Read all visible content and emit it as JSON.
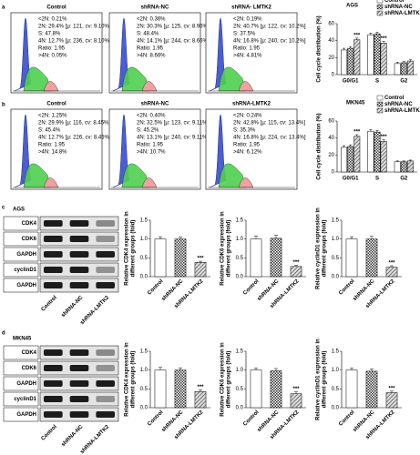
{
  "panel_labels": [
    "a",
    "b",
    "c",
    "d"
  ],
  "flow": [
    {
      "title": "Control",
      "stats": [
        "<2N: 0.21%",
        "2N: 29.4% [μ: 121, cv: 9.10%]",
        "S: 47.8%",
        "4N: 12.7% [μ: 236, cv: 8.10%]",
        "Ratio: 1.95",
        ">4N: 0.05%"
      ]
    },
    {
      "title": "shRNA-NC",
      "stats": [
        "<2N: 0.36%",
        "2N: 30.3% [μ: 125, cv: 8.96%]",
        "S: 48.4%",
        "4N: 14.1% [μ: 244, cv: 8.66%]",
        "Ratio: 1.95",
        ">4N: 8.66%"
      ]
    },
    {
      "title": "shRNA- LMTK2",
      "stats": [
        "<2N: 0.19%",
        "2N: 40.7% [μ: 122, cv: 10.2%]",
        "S: 37.5%",
        "4N: 16.8% [μ: 240, cv: 10.2%]",
        "Ratio: 1.95",
        ">4N: 4.81%"
      ]
    },
    {
      "title": "Control",
      "stats": [
        "<2N: 1.25%",
        "2N: 29.9% [μ: 116, cv: 8.45%]",
        "S: 45.4%",
        "4N: 12.7% [μ: 226, cv: 8.45%]",
        "Ratio: 1.95",
        ">4N: 14.8%"
      ]
    },
    {
      "title": "shRNA-NC",
      "stats": [
        "<2N: 0.40%",
        "2N: 32.5% [μ: 123, cv: 9.11%]",
        "S: 45.2%",
        "4N: 13.1% [μ: 240, cv: 9.11%]",
        "Ratio: 1.95",
        ">4N: 10.7%"
      ]
    },
    {
      "title": "shRNA-LMTK2",
      "stats": [
        "<2N: 0.24%",
        "2N: 42.8% [μ: 115, cv: 13.4%]",
        "S: 35.3%",
        "4N: 16.8% [μ: 224, cv: 13.4%]",
        "Ratio: 1.95",
        ">4N: 6.12%"
      ]
    }
  ],
  "blots": [
    {
      "cell_line": "AGS",
      "rows": [
        "CDK4",
        "CDK6",
        "GAPDH",
        "cyclinD1",
        "GAPDH"
      ],
      "lanes": [
        "Control",
        "shRNA-NC",
        "shRNA-LMTK2"
      ]
    },
    {
      "cell_line": "MKN45",
      "rows": [
        "CDK4",
        "CDK6",
        "GAPDH",
        "cyclinD1",
        "GAPDH"
      ],
      "lanes": [
        "Control",
        "shRNA-NC",
        "shRNA-LMTK2"
      ]
    }
  ],
  "chart_data": [
    {
      "type": "grouped_bar",
      "title": "AGS",
      "ylabel": "Cell cycle distribution (%)",
      "categories": [
        "G0/G1",
        "S",
        "G2"
      ],
      "series": [
        {
          "name": "Control",
          "color": "#ffffff",
          "pattern": "plain",
          "values": [
            29,
            47,
            13
          ],
          "errors": [
            2,
            2,
            1.5
          ]
        },
        {
          "name": "shRNA-NC",
          "color": "#ffffff",
          "pattern": "checker",
          "values": [
            31,
            48,
            14
          ],
          "errors": [
            2,
            2,
            1.5
          ]
        },
        {
          "name": "shRNA-LMTK2",
          "color": "#ffffff",
          "pattern": "hatch",
          "values": [
            41,
            37,
            16
          ],
          "errors": [
            2,
            2,
            1.5
          ],
          "marks": [
            "***",
            "***",
            null
          ]
        }
      ],
      "ylim": [
        0,
        60
      ],
      "yticks": [
        0,
        20,
        40,
        60
      ]
    },
    {
      "type": "grouped_bar",
      "title": "MKN45",
      "ylabel": "Cell cycle distribution (%)",
      "categories": [
        "G0/G1",
        "S",
        "G2"
      ],
      "series": [
        {
          "name": "Control",
          "color": "#ffffff",
          "pattern": "plain",
          "values": [
            29,
            48,
            12
          ],
          "errors": [
            2,
            2,
            1
          ]
        },
        {
          "name": "shRNA-NC",
          "color": "#ffffff",
          "pattern": "checker",
          "values": [
            30,
            47,
            12
          ],
          "errors": [
            2,
            2,
            1
          ]
        },
        {
          "name": "shRNA-LMTK2",
          "color": "#ffffff",
          "pattern": "hatch",
          "values": [
            42,
            36,
            13
          ],
          "errors": [
            2,
            2,
            1
          ],
          "marks": [
            "***",
            "***",
            null
          ]
        }
      ],
      "ylim": [
        0,
        60
      ],
      "yticks": [
        0,
        20,
        40,
        60
      ]
    },
    {
      "type": "bar",
      "ylabel": [
        "Relative CDK4 expression in",
        "different groups (fold)"
      ],
      "categories": [
        "Control",
        "shRNA-NC",
        "shRNA-LMTK2"
      ],
      "values": [
        1.0,
        1.0,
        0.38
      ],
      "errors": [
        0.06,
        0.06,
        0.03
      ],
      "patterns": [
        "plain",
        "checker",
        "hatch"
      ],
      "marks": [
        null,
        null,
        "***"
      ],
      "ylim": [
        0,
        1.5
      ],
      "yticks": [
        {
          "value": 0,
          "label": "0.0"
        },
        {
          "value": 0.5,
          "label": "0.5"
        },
        {
          "value": 1,
          "label": "1.0"
        },
        {
          "value": 1.5,
          "label": "1.5"
        }
      ]
    },
    {
      "type": "bar",
      "ylabel": [
        "Relative CDK6 expression in",
        "different groups (fold)"
      ],
      "categories": [
        "Control",
        "shRNA-NC",
        "shRNA-LMTK2"
      ],
      "values": [
        1.0,
        1.02,
        0.27
      ],
      "errors": [
        0.08,
        0.08,
        0.03
      ],
      "patterns": [
        "plain",
        "checker",
        "hatch"
      ],
      "marks": [
        null,
        null,
        "***"
      ],
      "ylim": [
        0,
        1.5
      ],
      "yticks": [
        {
          "value": 0,
          "label": "0.0"
        },
        {
          "value": 0.5,
          "label": "0.5"
        },
        {
          "value": 1,
          "label": "1.0"
        },
        {
          "value": 1.5,
          "label": "1.5"
        }
      ]
    },
    {
      "type": "bar",
      "ylabel": [
        "Relative cyclinD1 expression in",
        "different groups (fold)"
      ],
      "categories": [
        "Control",
        "shRNA-NC",
        "shRNA-LMTK2"
      ],
      "values": [
        1.0,
        1.0,
        0.25
      ],
      "errors": [
        0.06,
        0.07,
        0.04
      ],
      "patterns": [
        "plain",
        "checker",
        "hatch"
      ],
      "marks": [
        null,
        null,
        "***"
      ],
      "ylim": [
        0,
        1.5
      ],
      "yticks": [
        {
          "value": 0,
          "label": "0.0"
        },
        {
          "value": 0.5,
          "label": "0.5"
        },
        {
          "value": 1,
          "label": "1.0"
        },
        {
          "value": 1.5,
          "label": "1.5"
        }
      ]
    },
    {
      "type": "bar",
      "ylabel": [
        "Relative CDK4 expression in",
        "different groups (fold)"
      ],
      "categories": [
        "Control",
        "shRNA-NC",
        "shRNA-LMTK2"
      ],
      "values": [
        1.0,
        1.0,
        0.43
      ],
      "errors": [
        0.07,
        0.06,
        0.04
      ],
      "patterns": [
        "plain",
        "checker",
        "hatch"
      ],
      "marks": [
        null,
        null,
        "***"
      ],
      "ylim": [
        0,
        1.5
      ],
      "yticks": [
        {
          "value": 0,
          "label": "0.0"
        },
        {
          "value": 0.5,
          "label": "0.5"
        },
        {
          "value": 1,
          "label": "1.0"
        },
        {
          "value": 1.5,
          "label": "1.5"
        }
      ]
    },
    {
      "type": "bar",
      "ylabel": [
        "Relative CDK6 expression in",
        "different groups (fold)"
      ],
      "categories": [
        "Control",
        "shRNA-NC",
        "shRNA-LMTK2"
      ],
      "values": [
        1.0,
        0.98,
        0.37
      ],
      "errors": [
        0.05,
        0.06,
        0.05
      ],
      "patterns": [
        "plain",
        "checker",
        "hatch"
      ],
      "marks": [
        null,
        null,
        "***"
      ],
      "ylim": [
        0,
        1.5
      ],
      "yticks": [
        {
          "value": 0,
          "label": "0.0"
        },
        {
          "value": 0.5,
          "label": "0.5"
        },
        {
          "value": 1,
          "label": "1.0"
        },
        {
          "value": 1.5,
          "label": "1.5"
        }
      ]
    },
    {
      "type": "bar",
      "ylabel": [
        "Relative cyclinD1 expression in",
        "different groups (fold)"
      ],
      "categories": [
        "Control",
        "shRNA-NC",
        "shRNA-LMTK2"
      ],
      "values": [
        1.0,
        0.97,
        0.4
      ],
      "errors": [
        0.05,
        0.06,
        0.04
      ],
      "patterns": [
        "plain",
        "checker",
        "hatch"
      ],
      "marks": [
        null,
        null,
        "***"
      ],
      "ylim": [
        0,
        1.5
      ],
      "yticks": [
        {
          "value": 0,
          "label": "0.0"
        },
        {
          "value": 0.5,
          "label": "0.5"
        },
        {
          "value": 1,
          "label": "1.0"
        },
        {
          "value": 1.5,
          "label": "1.5"
        }
      ]
    }
  ]
}
